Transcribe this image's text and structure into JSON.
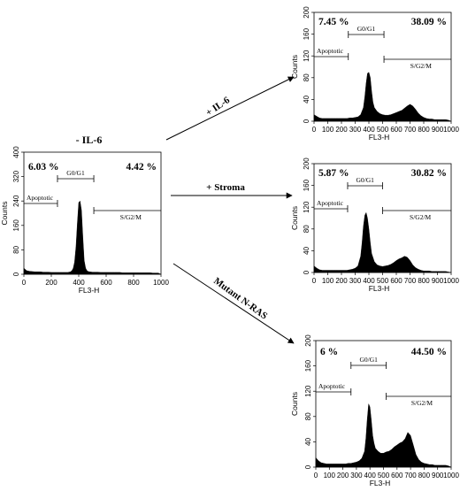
{
  "chart_data": [
    {
      "id": "ctrl",
      "type": "area",
      "title": "- IL-6",
      "xlabel": "FL3-H",
      "ylabel": "Counts",
      "xlim": [
        0,
        1000
      ],
      "ylim": [
        0,
        400
      ],
      "xticks": [
        0,
        200,
        400,
        600,
        800,
        1000
      ],
      "yticks": [
        0,
        80,
        160,
        240,
        320,
        400
      ],
      "gates": [
        {
          "label": "Apoptotic",
          "percent": "6.03 %",
          "range": [
            0,
            245
          ]
        },
        {
          "label": "G0/G1",
          "percent": "",
          "range": [
            245,
            510
          ]
        },
        {
          "label": "S/G2/M",
          "percent": "4.42 %",
          "range": [
            510,
            1000
          ]
        }
      ],
      "x": [
        0,
        20,
        40,
        60,
        80,
        100,
        120,
        140,
        160,
        180,
        200,
        220,
        240,
        260,
        280,
        300,
        320,
        340,
        350,
        360,
        370,
        380,
        390,
        400,
        410,
        420,
        430,
        440,
        450,
        460,
        470,
        480,
        500,
        520,
        540,
        560,
        580,
        600,
        620,
        640,
        660,
        680,
        700,
        720,
        740,
        760,
        780,
        800,
        820,
        840,
        860,
        880,
        900,
        920,
        940,
        960,
        980,
        1000
      ],
      "y": [
        20,
        12,
        10,
        9,
        8,
        8,
        8,
        7,
        7,
        7,
        6,
        6,
        6,
        6,
        6,
        6,
        6,
        8,
        12,
        20,
        40,
        90,
        170,
        235,
        240,
        210,
        120,
        45,
        20,
        12,
        9,
        8,
        7,
        7,
        7,
        6,
        6,
        6,
        6,
        6,
        6,
        6,
        6,
        5,
        5,
        5,
        5,
        5,
        5,
        5,
        5,
        5,
        5,
        5,
        4,
        4,
        4,
        0
      ]
    },
    {
      "id": "il6",
      "type": "area",
      "title": "+ IL-6",
      "xlabel": "FL3-H",
      "ylabel": "Counts",
      "xlim": [
        0,
        1000
      ],
      "ylim": [
        0,
        200
      ],
      "xticks": [
        0,
        100,
        200,
        300,
        400,
        500,
        600,
        700,
        800,
        900,
        1000
      ],
      "yticks": [
        0,
        40,
        80,
        120,
        160,
        200
      ],
      "gates": [
        {
          "label": "Apoptotic",
          "percent": "7.45 %",
          "range": [
            0,
            250
          ]
        },
        {
          "label": "G0/G1",
          "percent": "",
          "range": [
            250,
            510
          ]
        },
        {
          "label": "S/G2/M",
          "percent": "38.09 %",
          "range": [
            510,
            1000
          ]
        }
      ],
      "x": [
        0,
        20,
        40,
        60,
        80,
        100,
        120,
        140,
        160,
        180,
        200,
        220,
        240,
        260,
        280,
        300,
        320,
        340,
        360,
        370,
        380,
        390,
        400,
        410,
        420,
        430,
        440,
        460,
        480,
        500,
        520,
        540,
        560,
        580,
        600,
        620,
        640,
        660,
        680,
        700,
        720,
        740,
        760,
        780,
        800,
        820,
        840,
        860,
        880,
        900,
        920,
        940,
        960,
        980,
        1000
      ],
      "y": [
        12,
        9,
        6,
        5,
        5,
        5,
        5,
        5,
        5,
        5,
        5,
        5,
        5,
        6,
        6,
        7,
        8,
        12,
        25,
        45,
        70,
        88,
        90,
        80,
        55,
        35,
        25,
        18,
        14,
        12,
        11,
        11,
        12,
        14,
        16,
        18,
        20,
        24,
        28,
        31,
        28,
        22,
        15,
        10,
        7,
        5,
        4,
        4,
        3,
        3,
        3,
        3,
        3,
        2,
        0
      ]
    },
    {
      "id": "stroma",
      "type": "area",
      "title": "+ Stroma",
      "xlabel": "FL3-H",
      "ylabel": "Counts",
      "xlim": [
        0,
        1000
      ],
      "ylim": [
        0,
        200
      ],
      "xticks": [
        0,
        100,
        200,
        300,
        400,
        500,
        600,
        700,
        800,
        900,
        1000
      ],
      "yticks": [
        0,
        40,
        80,
        120,
        160,
        200
      ],
      "gates": [
        {
          "label": "Apoptotic",
          "percent": "5.87 %",
          "range": [
            0,
            245
          ]
        },
        {
          "label": "G0/G1",
          "percent": "",
          "range": [
            245,
            500
          ]
        },
        {
          "label": "S/G2/M",
          "percent": "30.82 %",
          "range": [
            500,
            1000
          ]
        }
      ],
      "x": [
        0,
        20,
        40,
        60,
        80,
        100,
        120,
        140,
        160,
        180,
        200,
        220,
        240,
        260,
        280,
        300,
        320,
        340,
        350,
        360,
        370,
        380,
        390,
        400,
        410,
        420,
        440,
        460,
        480,
        500,
        520,
        540,
        560,
        580,
        600,
        620,
        640,
        660,
        680,
        700,
        720,
        740,
        760,
        780,
        800,
        820,
        840,
        860,
        880,
        900,
        920,
        940,
        960,
        980,
        1000
      ],
      "y": [
        12,
        8,
        5,
        4,
        4,
        4,
        4,
        4,
        4,
        4,
        4,
        4,
        4,
        5,
        6,
        8,
        12,
        30,
        55,
        85,
        105,
        110,
        100,
        80,
        55,
        35,
        20,
        14,
        12,
        11,
        12,
        13,
        15,
        18,
        22,
        25,
        27,
        30,
        28,
        22,
        14,
        9,
        6,
        4,
        3,
        3,
        3,
        2,
        2,
        2,
        2,
        2,
        2,
        1,
        0
      ]
    },
    {
      "id": "nras",
      "type": "area",
      "title": "Mutant N-RAS",
      "xlabel": "FL3-H",
      "ylabel": "Counts",
      "xlim": [
        0,
        1000
      ],
      "ylim": [
        0,
        200
      ],
      "xticks": [
        0,
        100,
        200,
        300,
        400,
        500,
        600,
        700,
        800,
        900,
        1000
      ],
      "yticks": [
        0,
        40,
        80,
        120,
        160,
        200
      ],
      "gates": [
        {
          "label": "Apoptotic",
          "percent": "6 %",
          "range": [
            0,
            260
          ]
        },
        {
          "label": "G0/G1",
          "percent": "",
          "range": [
            260,
            520
          ]
        },
        {
          "label": "S/G2/M",
          "percent": "44.50 %",
          "range": [
            520,
            1000
          ]
        }
      ],
      "x": [
        0,
        20,
        40,
        60,
        80,
        100,
        120,
        140,
        160,
        180,
        200,
        220,
        240,
        260,
        280,
        300,
        320,
        340,
        360,
        370,
        380,
        390,
        400,
        410,
        420,
        430,
        440,
        460,
        480,
        500,
        520,
        540,
        560,
        580,
        600,
        620,
        640,
        660,
        680,
        700,
        720,
        740,
        760,
        780,
        800,
        820,
        840,
        860,
        880,
        900,
        920,
        940,
        960,
        980,
        1000
      ],
      "y": [
        15,
        10,
        7,
        6,
        5,
        5,
        5,
        5,
        5,
        5,
        5,
        5,
        6,
        6,
        7,
        8,
        10,
        14,
        25,
        45,
        75,
        100,
        95,
        75,
        50,
        38,
        30,
        25,
        22,
        22,
        24,
        25,
        28,
        32,
        35,
        38,
        40,
        45,
        55,
        50,
        35,
        20,
        12,
        8,
        6,
        5,
        4,
        4,
        3,
        3,
        3,
        3,
        3,
        2,
        0
      ]
    }
  ],
  "arrows": [
    {
      "label": "+ IL-6"
    },
    {
      "label": "+ Stroma"
    },
    {
      "label": "Mutant N-RAS"
    }
  ]
}
